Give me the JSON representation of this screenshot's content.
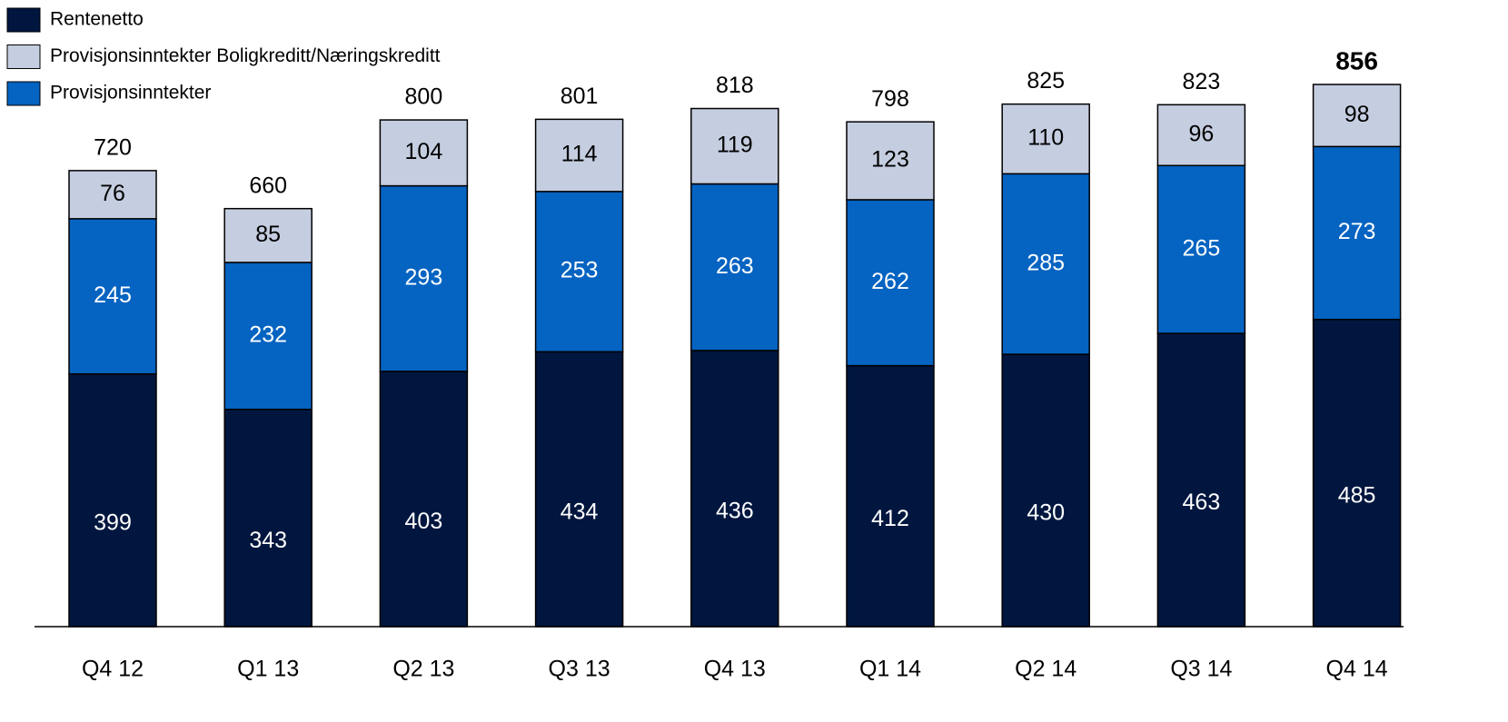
{
  "chart_data": {
    "type": "stacked-bar",
    "categories": [
      "Q4 12",
      "Q1 13",
      "Q2 13",
      "Q3 13",
      "Q4 13",
      "Q1 14",
      "Q2 14",
      "Q3 14",
      "Q4 14"
    ],
    "series": [
      {
        "name": "Rentenetto",
        "color": "#00163f",
        "values": [
          399,
          343,
          403,
          434,
          436,
          412,
          430,
          463,
          485
        ]
      },
      {
        "name": "Provisjonsinntekter",
        "color": "#0563c1",
        "values": [
          245,
          232,
          293,
          253,
          263,
          262,
          285,
          265,
          273
        ]
      },
      {
        "name": "Provisjonsinntekter Boligkreditt/Næringskreditt",
        "color": "#c5cde0",
        "values": [
          76,
          85,
          104,
          114,
          119,
          123,
          110,
          96,
          98
        ]
      }
    ],
    "totals": [
      720,
      660,
      800,
      801,
      818,
      798,
      825,
      823,
      856
    ]
  }
}
